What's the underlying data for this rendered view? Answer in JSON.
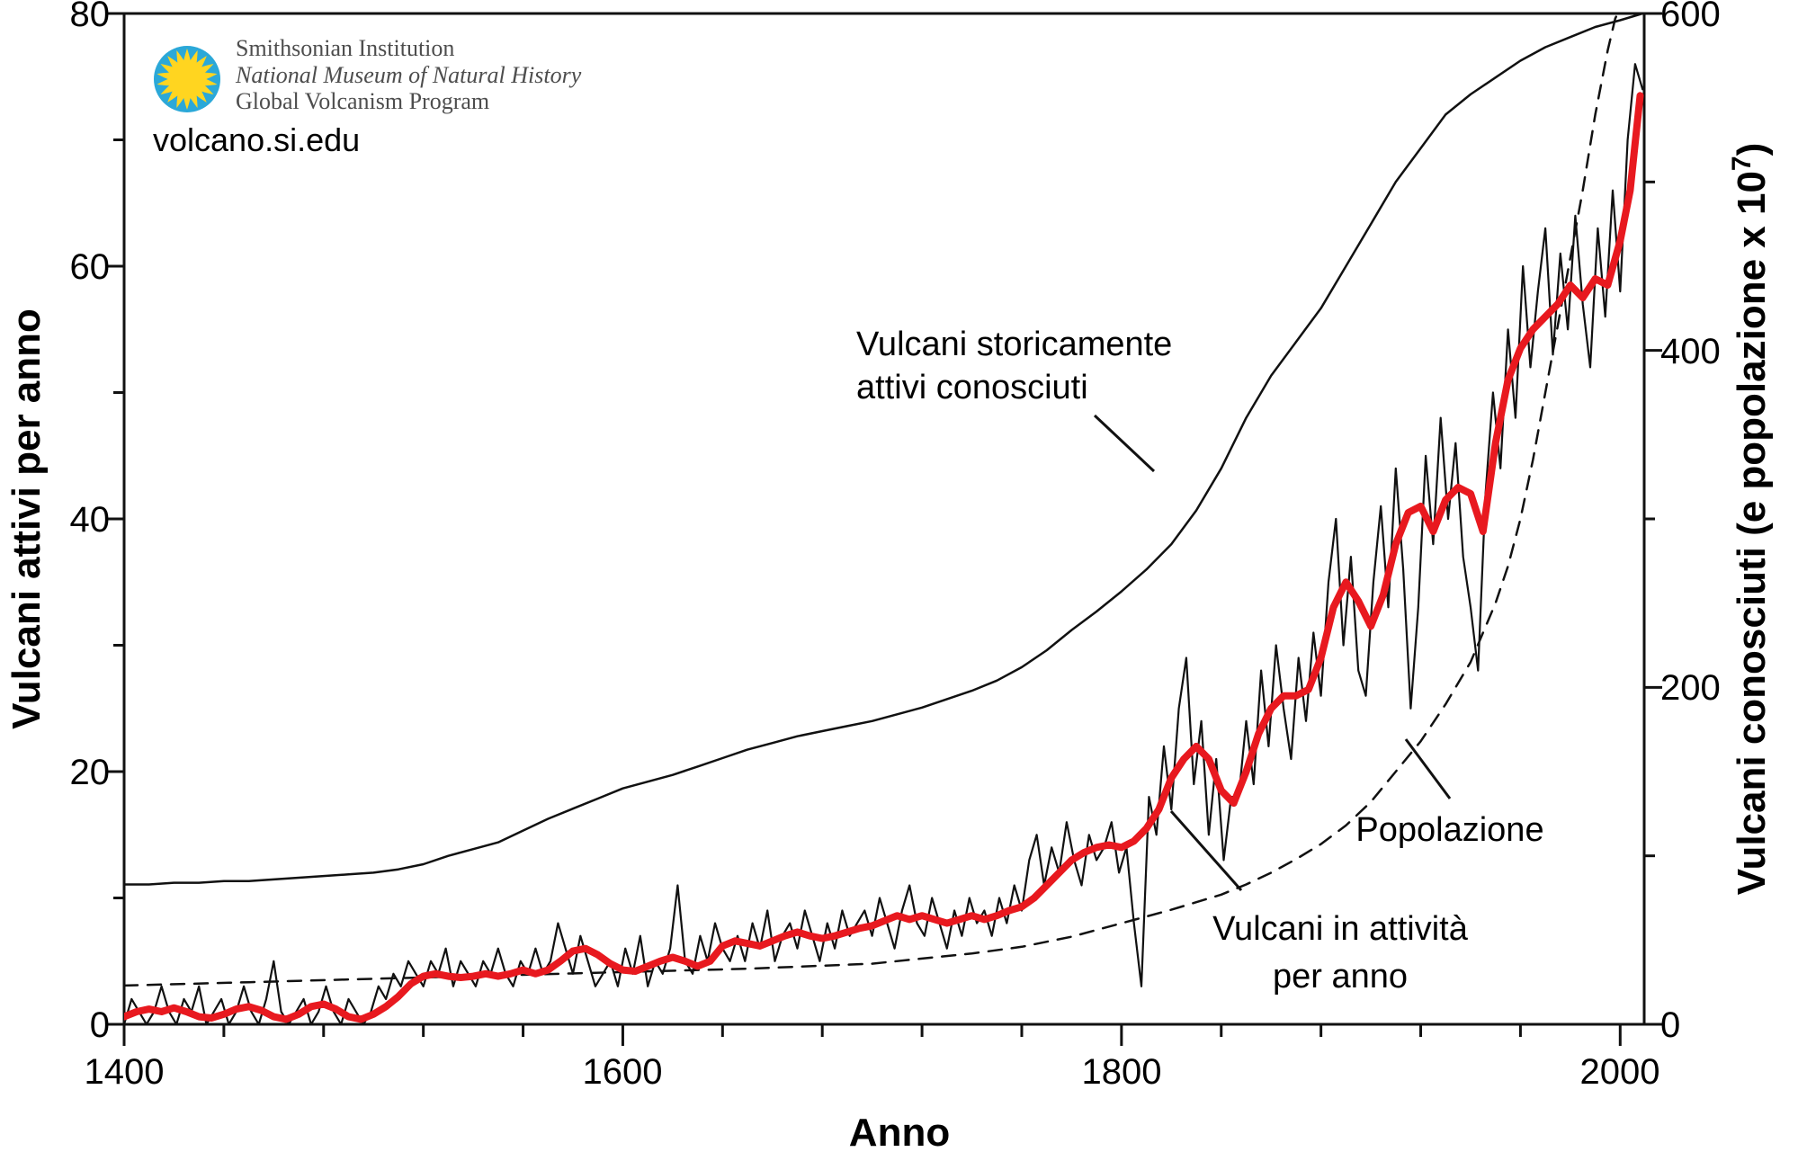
{
  "branding": {
    "org": "Smithsonian Institution",
    "museum": "National Museum of Natural History",
    "program": "Global Volcanism Program",
    "site": "volcano.si.edu"
  },
  "axes": {
    "x_title": "Anno",
    "left_title": "Vulcani attivi per anno",
    "right_title_main": "Vulcani conosciuti (e popolazione x 10",
    "right_title_sup": "7",
    "right_title_close": ")",
    "x_labels": [
      "1400",
      "1600",
      "1800",
      "2000"
    ],
    "left_labels": [
      "0",
      "20",
      "40",
      "60",
      "80"
    ],
    "right_labels": [
      "0",
      "200",
      "400",
      "600"
    ]
  },
  "annotations": {
    "known_line1": "Vulcani storicamente",
    "known_line2": "attivi conosciuti",
    "population": "Popolazione",
    "active_line1": "Vulcani in attività",
    "active_line2": "per anno"
  },
  "colors": {
    "red_series": "#e8191f",
    "black_series": "#111111",
    "logo_blue": "#2ba8d8",
    "logo_yellow": "#ffd520",
    "smith_text": "#4d4d4d"
  },
  "chart_data": {
    "type": "line",
    "title": "",
    "xlabel": "Anno",
    "ylabel_left": "Vulcani attivi per anno",
    "ylabel_right": "Vulcani conosciuti (e popolazione x 10^7)",
    "xlim": [
      1400,
      2010
    ],
    "ylim_left": [
      0,
      80
    ],
    "ylim_right": [
      0,
      600
    ],
    "grid": false,
    "legend": "annotated-in-plot",
    "x_major_ticks": [
      1400,
      1600,
      1800,
      2000
    ],
    "x_minor_ticks": [
      1440,
      1480,
      1520,
      1560,
      1640,
      1680,
      1720,
      1760,
      1840,
      1880,
      1920,
      1960
    ],
    "left_major_ticks": [
      0,
      20,
      40,
      60,
      80
    ],
    "left_minor_ticks": [
      10,
      30,
      50,
      70
    ],
    "right_major_ticks": [
      0,
      200,
      400,
      600
    ],
    "right_minor_ticks": [
      100,
      300,
      500
    ],
    "series": [
      {
        "name": "Vulcani storicamente attivi conosciuti",
        "axis": "right",
        "style": "solid",
        "width": 2.5,
        "color": "#111111",
        "points": [
          [
            1400,
            83
          ],
          [
            1410,
            83
          ],
          [
            1420,
            84
          ],
          [
            1430,
            84
          ],
          [
            1440,
            85
          ],
          [
            1450,
            85
          ],
          [
            1460,
            86
          ],
          [
            1470,
            87
          ],
          [
            1480,
            88
          ],
          [
            1490,
            89
          ],
          [
            1500,
            90
          ],
          [
            1510,
            92
          ],
          [
            1520,
            95
          ],
          [
            1530,
            100
          ],
          [
            1540,
            104
          ],
          [
            1550,
            108
          ],
          [
            1560,
            115
          ],
          [
            1570,
            122
          ],
          [
            1580,
            128
          ],
          [
            1590,
            134
          ],
          [
            1600,
            140
          ],
          [
            1610,
            144
          ],
          [
            1620,
            148
          ],
          [
            1630,
            153
          ],
          [
            1640,
            158
          ],
          [
            1650,
            163
          ],
          [
            1660,
            167
          ],
          [
            1670,
            171
          ],
          [
            1680,
            174
          ],
          [
            1690,
            177
          ],
          [
            1700,
            180
          ],
          [
            1710,
            184
          ],
          [
            1720,
            188
          ],
          [
            1730,
            193
          ],
          [
            1740,
            198
          ],
          [
            1750,
            204
          ],
          [
            1760,
            212
          ],
          [
            1770,
            222
          ],
          [
            1780,
            234
          ],
          [
            1790,
            245
          ],
          [
            1800,
            257
          ],
          [
            1810,
            270
          ],
          [
            1820,
            285
          ],
          [
            1830,
            305
          ],
          [
            1840,
            330
          ],
          [
            1850,
            360
          ],
          [
            1860,
            385
          ],
          [
            1870,
            405
          ],
          [
            1880,
            425
          ],
          [
            1890,
            450
          ],
          [
            1900,
            475
          ],
          [
            1910,
            500
          ],
          [
            1920,
            520
          ],
          [
            1930,
            540
          ],
          [
            1940,
            552
          ],
          [
            1950,
            562
          ],
          [
            1960,
            572
          ],
          [
            1970,
            580
          ],
          [
            1980,
            586
          ],
          [
            1990,
            592
          ],
          [
            2000,
            596
          ],
          [
            2009,
            600
          ]
        ]
      },
      {
        "name": "Popolazione",
        "axis": "right",
        "style": "dashed",
        "width": 2.5,
        "color": "#111111",
        "points": [
          [
            1400,
            23
          ],
          [
            1450,
            25
          ],
          [
            1500,
            27
          ],
          [
            1550,
            29
          ],
          [
            1600,
            31
          ],
          [
            1650,
            33
          ],
          [
            1700,
            36
          ],
          [
            1720,
            39
          ],
          [
            1740,
            42
          ],
          [
            1760,
            46
          ],
          [
            1780,
            52
          ],
          [
            1800,
            60
          ],
          [
            1820,
            68
          ],
          [
            1840,
            77
          ],
          [
            1850,
            83
          ],
          [
            1860,
            90
          ],
          [
            1870,
            98
          ],
          [
            1880,
            107
          ],
          [
            1890,
            118
          ],
          [
            1900,
            132
          ],
          [
            1910,
            150
          ],
          [
            1920,
            168
          ],
          [
            1930,
            190
          ],
          [
            1940,
            215
          ],
          [
            1950,
            250
          ],
          [
            1955,
            272
          ],
          [
            1960,
            300
          ],
          [
            1965,
            335
          ],
          [
            1970,
            375
          ],
          [
            1975,
            415
          ],
          [
            1980,
            455
          ],
          [
            1985,
            495
          ],
          [
            1990,
            540
          ],
          [
            1995,
            578
          ],
          [
            1998,
            597
          ],
          [
            1999,
            600
          ]
        ]
      },
      {
        "name": "Vulcani in attività per anno (annuale)",
        "axis": "left",
        "style": "solid",
        "width": 2.2,
        "color": "#111111",
        "start": 1400,
        "step": 3,
        "values": [
          0,
          2,
          1,
          0,
          1,
          3,
          1,
          0,
          2,
          1,
          3,
          0,
          1,
          2,
          0,
          1,
          3,
          1,
          0,
          2,
          5,
          1,
          0,
          1,
          2,
          0,
          1,
          3,
          1,
          0,
          2,
          1,
          0,
          1,
          3,
          2,
          4,
          3,
          5,
          4,
          3,
          5,
          4,
          6,
          3,
          5,
          4,
          3,
          5,
          4,
          6,
          4,
          3,
          5,
          4,
          6,
          4,
          5,
          8,
          6,
          4,
          7,
          5,
          3,
          4,
          5,
          3,
          6,
          4,
          7,
          3,
          5,
          4,
          6,
          11,
          5,
          4,
          7,
          5,
          8,
          6,
          5,
          7,
          5,
          8,
          6,
          9,
          5,
          7,
          8,
          6,
          9,
          7,
          5,
          8,
          6,
          9,
          7,
          8,
          9,
          7,
          10,
          8,
          6,
          9,
          11,
          8,
          7,
          10,
          8,
          6,
          9,
          7,
          10,
          8,
          9,
          7,
          10,
          8,
          11,
          9,
          13,
          15,
          11,
          14,
          12,
          16,
          13,
          11,
          15,
          13,
          14,
          16,
          12,
          14,
          8,
          3,
          18,
          15,
          22,
          17,
          25,
          29,
          19,
          24,
          15,
          21,
          13,
          18,
          18,
          24,
          19,
          28,
          22,
          30,
          25,
          21,
          29,
          24,
          31,
          26,
          35,
          40,
          30,
          37,
          28,
          26,
          35,
          41,
          33,
          44,
          36,
          25,
          33,
          45,
          38,
          48,
          40,
          46,
          37,
          33,
          28,
          42,
          50,
          44,
          55,
          48,
          60,
          52,
          58,
          63,
          53,
          61,
          55,
          64,
          57,
          52,
          63,
          56,
          66,
          58,
          70,
          76,
          74
        ]
      },
      {
        "name": "Vulcani in attività per anno (media mobile)",
        "axis": "left",
        "style": "solid",
        "width": 8,
        "color": "#e8191f",
        "points": [
          [
            1400,
            0.6
          ],
          [
            1405,
            1.0
          ],
          [
            1410,
            1.2
          ],
          [
            1415,
            1.0
          ],
          [
            1420,
            1.3
          ],
          [
            1425,
            1.0
          ],
          [
            1430,
            0.6
          ],
          [
            1435,
            0.5
          ],
          [
            1440,
            0.8
          ],
          [
            1445,
            1.2
          ],
          [
            1450,
            1.4
          ],
          [
            1455,
            1.1
          ],
          [
            1460,
            0.6
          ],
          [
            1465,
            0.4
          ],
          [
            1470,
            0.8
          ],
          [
            1475,
            1.4
          ],
          [
            1480,
            1.6
          ],
          [
            1485,
            1.2
          ],
          [
            1490,
            0.6
          ],
          [
            1495,
            0.4
          ],
          [
            1500,
            0.8
          ],
          [
            1505,
            1.4
          ],
          [
            1510,
            2.2
          ],
          [
            1515,
            3.2
          ],
          [
            1520,
            3.8
          ],
          [
            1525,
            4.0
          ],
          [
            1530,
            3.8
          ],
          [
            1535,
            3.7
          ],
          [
            1540,
            3.8
          ],
          [
            1545,
            4.0
          ],
          [
            1550,
            3.8
          ],
          [
            1555,
            4.0
          ],
          [
            1560,
            4.3
          ],
          [
            1565,
            4.0
          ],
          [
            1570,
            4.3
          ],
          [
            1575,
            5.0
          ],
          [
            1580,
            5.8
          ],
          [
            1585,
            6.0
          ],
          [
            1590,
            5.5
          ],
          [
            1595,
            4.8
          ],
          [
            1600,
            4.3
          ],
          [
            1605,
            4.2
          ],
          [
            1610,
            4.6
          ],
          [
            1615,
            5.0
          ],
          [
            1620,
            5.3
          ],
          [
            1625,
            5.0
          ],
          [
            1630,
            4.6
          ],
          [
            1635,
            5.0
          ],
          [
            1640,
            6.2
          ],
          [
            1645,
            6.6
          ],
          [
            1650,
            6.4
          ],
          [
            1655,
            6.2
          ],
          [
            1660,
            6.6
          ],
          [
            1665,
            7.0
          ],
          [
            1670,
            7.3
          ],
          [
            1675,
            7.0
          ],
          [
            1680,
            6.8
          ],
          [
            1685,
            7.0
          ],
          [
            1690,
            7.3
          ],
          [
            1695,
            7.6
          ],
          [
            1700,
            7.8
          ],
          [
            1705,
            8.2
          ],
          [
            1710,
            8.6
          ],
          [
            1715,
            8.3
          ],
          [
            1720,
            8.6
          ],
          [
            1725,
            8.3
          ],
          [
            1730,
            8.0
          ],
          [
            1735,
            8.3
          ],
          [
            1740,
            8.6
          ],
          [
            1745,
            8.3
          ],
          [
            1750,
            8.6
          ],
          [
            1755,
            9.0
          ],
          [
            1760,
            9.3
          ],
          [
            1765,
            10.0
          ],
          [
            1770,
            11.0
          ],
          [
            1775,
            12.0
          ],
          [
            1780,
            13.0
          ],
          [
            1785,
            13.6
          ],
          [
            1790,
            14.0
          ],
          [
            1795,
            14.2
          ],
          [
            1800,
            14.0
          ],
          [
            1805,
            14.5
          ],
          [
            1810,
            15.5
          ],
          [
            1815,
            17.0
          ],
          [
            1820,
            19.5
          ],
          [
            1825,
            21.0
          ],
          [
            1830,
            22.0
          ],
          [
            1835,
            21.0
          ],
          [
            1840,
            18.5
          ],
          [
            1845,
            17.5
          ],
          [
            1850,
            20.0
          ],
          [
            1855,
            23.0
          ],
          [
            1860,
            25.0
          ],
          [
            1865,
            26.0
          ],
          [
            1870,
            26.0
          ],
          [
            1875,
            26.5
          ],
          [
            1880,
            29.0
          ],
          [
            1885,
            33.0
          ],
          [
            1890,
            35.0
          ],
          [
            1895,
            33.5
          ],
          [
            1900,
            31.5
          ],
          [
            1905,
            34.0
          ],
          [
            1910,
            38.0
          ],
          [
            1915,
            40.5
          ],
          [
            1920,
            41.0
          ],
          [
            1925,
            39.0
          ],
          [
            1930,
            41.5
          ],
          [
            1935,
            42.5
          ],
          [
            1940,
            42.0
          ],
          [
            1945,
            39.0
          ],
          [
            1950,
            46.0
          ],
          [
            1955,
            51.0
          ],
          [
            1960,
            53.5
          ],
          [
            1965,
            55.0
          ],
          [
            1970,
            56.0
          ],
          [
            1975,
            57.0
          ],
          [
            1980,
            58.5
          ],
          [
            1985,
            57.5
          ],
          [
            1990,
            59.0
          ],
          [
            1995,
            58.5
          ],
          [
            2000,
            62.0
          ],
          [
            2004,
            66.0
          ],
          [
            2008,
            73.5
          ]
        ]
      }
    ]
  }
}
